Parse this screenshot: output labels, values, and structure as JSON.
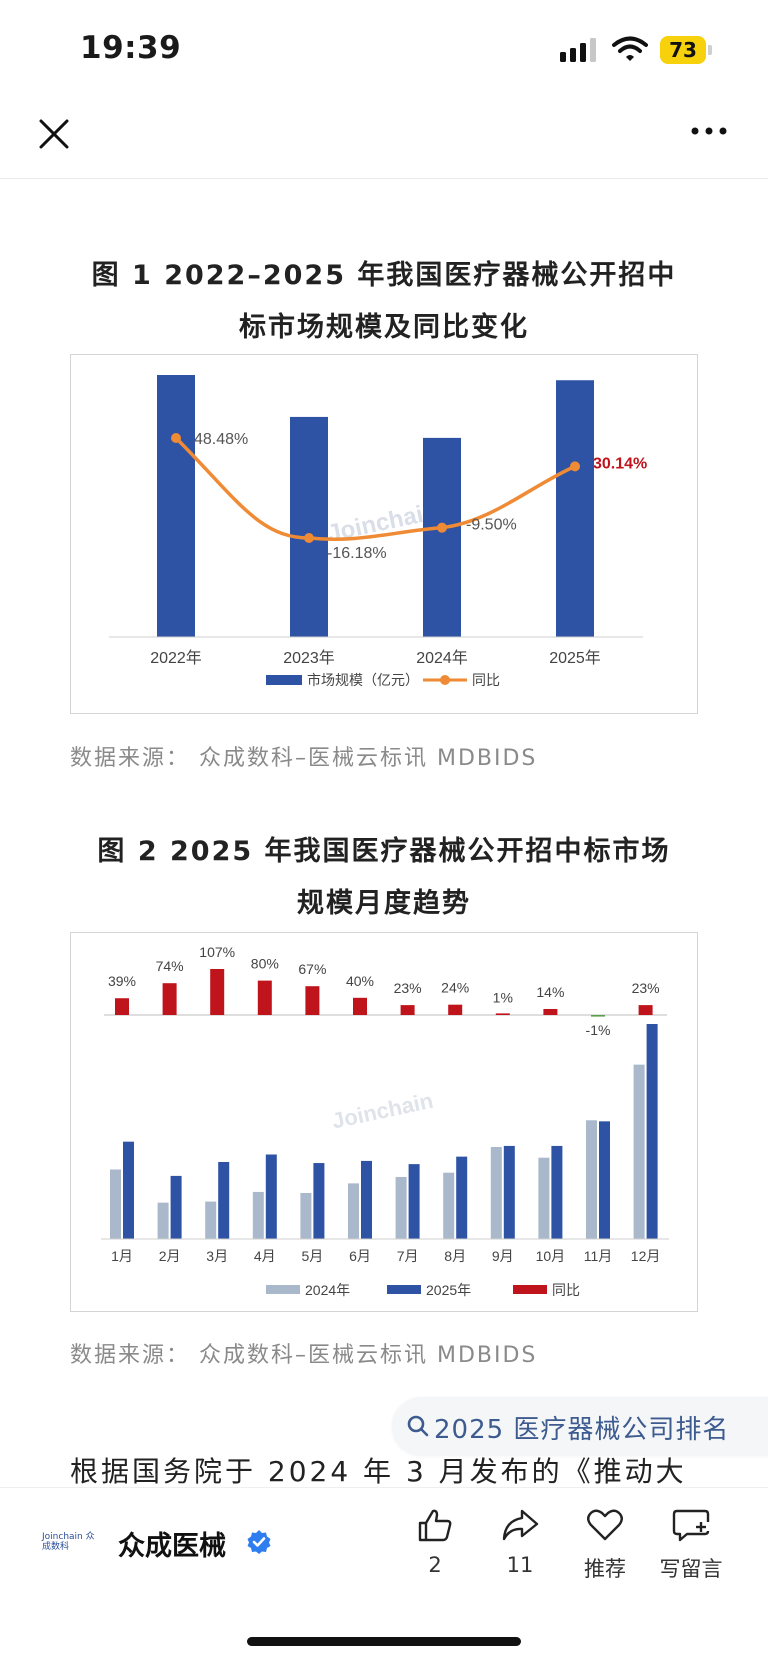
{
  "status_bar": {
    "time": "19:39",
    "battery": "73"
  },
  "nav": {
    "close_icon": "close-icon",
    "more_icon": "more-icon"
  },
  "figure1": {
    "title_line1": "图 1 2022–2025 年我国医疗器械公开招中",
    "title_line2": "标市场规模及同比变化",
    "watermark": "Joinchain",
    "source": "数据来源： 众成数科–医械云标讯 MDBIDS",
    "chart_data": {
      "type": "bar",
      "categories": [
        "2022年",
        "2023年",
        "2024年",
        "2025年"
      ],
      "series": [
        {
          "name": "市场规模（亿元）",
          "type": "bar",
          "color": "#2e52a4",
          "values": [
            100,
            84,
            76,
            98
          ]
        },
        {
          "name": "同比",
          "type": "line",
          "color": "#ef8a35",
          "values": [
            48.48,
            -16.18,
            -9.5,
            30.14
          ],
          "labels": [
            "48.48%",
            "-16.18%",
            "-9.50%",
            "30.14%"
          ]
        }
      ],
      "highlight_label_color": "#c0141c",
      "ylim_bar": [
        0,
        100
      ],
      "ylim_line": [
        -30,
        70
      ],
      "legend_position": "bottom"
    }
  },
  "figure2": {
    "title_line1": "图 2 2025 年我国医疗器械公开招中标市场",
    "title_line2": "规模月度趋势",
    "watermark": "Joinchain",
    "source": "数据来源： 众成数科–医械云标讯 MDBIDS",
    "chart_data": {
      "type": "bar",
      "categories": [
        "1月",
        "2月",
        "3月",
        "4月",
        "5月",
        "6月",
        "7月",
        "8月",
        "9月",
        "10月",
        "11月",
        "12月"
      ],
      "series": [
        {
          "name": "2024年",
          "color": "#aab8cc",
          "values": [
            65,
            34,
            35,
            44,
            43,
            52,
            58,
            62,
            86,
            76,
            111,
            163
          ]
        },
        {
          "name": "2025年",
          "color": "#2e52a4",
          "values": [
            91,
            59,
            72,
            79,
            71,
            73,
            70,
            77,
            87,
            87,
            110,
            201
          ]
        },
        {
          "name": "同比",
          "color": "#c0141c",
          "values": [
            39,
            74,
            107,
            80,
            67,
            40,
            23,
            24,
            1,
            14,
            -1,
            23
          ],
          "labels": [
            "39%",
            "74%",
            "107%",
            "80%",
            "67%",
            "40%",
            "23%",
            "24%",
            "1%",
            "14%",
            "-1%",
            "23%"
          ]
        }
      ],
      "negative_color": "#5aa04a",
      "legend_position": "bottom"
    }
  },
  "search_suggestion": "2025 医疗器械公司排名",
  "body_text": "根据国务院于 2024 年 3 月发布的《推动大",
  "account": {
    "name": "众成医械",
    "logo_text": "Joinchain 众成数科"
  },
  "actions": {
    "like_count": "2",
    "share_count": "11",
    "recommend_label": "推荐",
    "comment_label": "写留言"
  }
}
